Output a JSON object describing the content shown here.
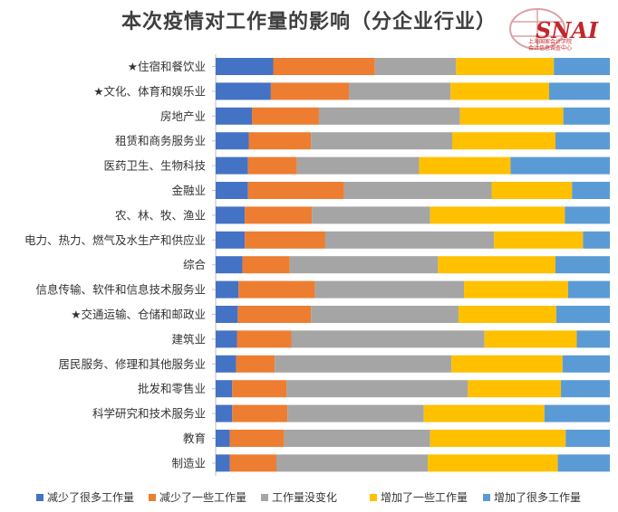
{
  "chart_data": {
    "type": "bar",
    "orientation": "horizontal",
    "stacked": true,
    "percent": true,
    "title": "本次疫情对工作量的影响（分企业行业）",
    "xlabel": "",
    "ylabel": "",
    "xlim": [
      0,
      100
    ],
    "legend_position": "bottom",
    "categories": [
      "★住宿和餐饮业",
      "★文化、体育和娱乐业",
      "房地产业",
      "租赁和商务服务业",
      "医药卫生、生物科技",
      "金融业",
      "农、林、牧、渔业",
      "电力、热力、燃气及水生产和供应业",
      "综合",
      "信息传输、软件和信息技术服务业",
      "★交通运输、仓储和邮政业",
      "建筑业",
      "居民服务、修理和其他服务业",
      "批发和零售业",
      "科学研究和技术服务业",
      "教育",
      "制造业"
    ],
    "series": [
      {
        "name": "减少了很多工作量",
        "color": "#4472c4",
        "values": [
          14.6,
          14.0,
          9.2,
          8.4,
          8.2,
          8.2,
          7.4,
          7.4,
          6.8,
          5.8,
          5.6,
          5.4,
          5.2,
          4.2,
          4.2,
          3.6,
          3.6
        ]
      },
      {
        "name": "减少了一些工作量",
        "color": "#ed7d31",
        "values": [
          25.8,
          19.8,
          17.0,
          15.8,
          12.4,
          24.4,
          17.0,
          20.4,
          12.0,
          19.4,
          18.6,
          13.8,
          9.8,
          13.8,
          14.0,
          13.8,
          11.8
        ]
      },
      {
        "name": "工作量没变化",
        "color": "#a5a5a5",
        "values": [
          20.6,
          25.8,
          35.8,
          35.8,
          31.0,
          37.4,
          30.0,
          42.8,
          37.6,
          37.8,
          37.4,
          49.0,
          44.8,
          46.0,
          34.6,
          37.0,
          38.4
        ]
      },
      {
        "name": "增加了一些工作量",
        "color": "#ffc000",
        "values": [
          24.8,
          25.0,
          26.2,
          26.2,
          23.2,
          20.4,
          34.2,
          22.6,
          29.8,
          26.4,
          24.8,
          23.4,
          28.2,
          23.6,
          30.6,
          34.4,
          33.0
        ]
      },
      {
        "name": "增加了很多工作量",
        "color": "#5b9bd5",
        "values": [
          14.2,
          15.4,
          11.8,
          13.8,
          25.2,
          9.6,
          11.4,
          6.8,
          13.8,
          10.6,
          13.6,
          8.4,
          12.0,
          12.4,
          16.6,
          11.2,
          13.2
        ]
      }
    ]
  },
  "logo": {
    "text": "SNAI",
    "org_line1": "上海国家会计学院",
    "org_line2": "会计信息调查中心"
  }
}
